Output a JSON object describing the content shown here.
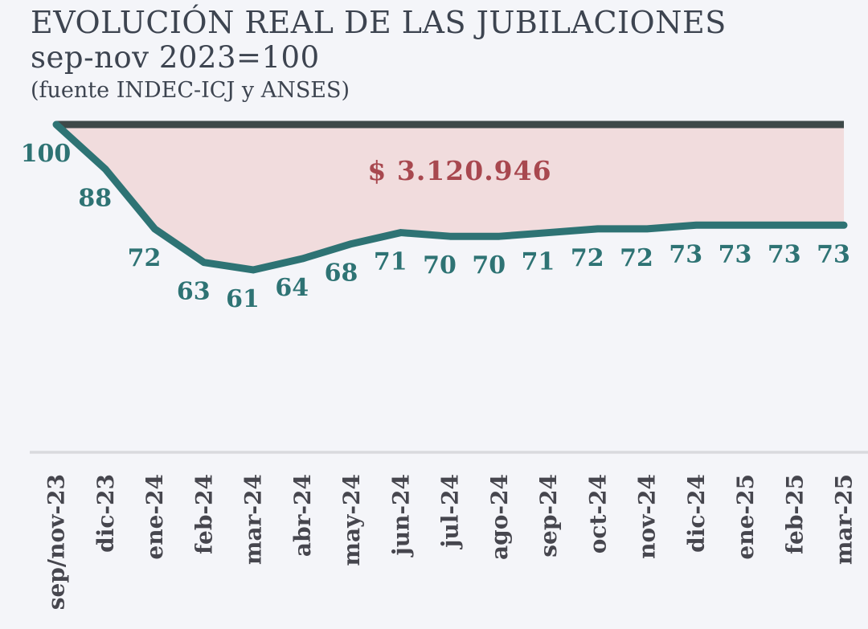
{
  "header": {
    "title": "EVOLUCIÓN REAL DE LAS JUBILACIONES",
    "subtitle": "sep-nov 2023=100",
    "source": "(fuente INDEC-ICJ y ANSES)"
  },
  "chart_data": {
    "type": "area",
    "title": "EVOLUCIÓN REAL DE LAS JUBILACIONES",
    "subtitle": "sep-nov 2023=100",
    "source": "(fuente INDEC-ICJ y ANSES)",
    "annotation": "$ 3.120.946",
    "baseline_value": 100,
    "categories": [
      "sep/nov-23",
      "dic-23",
      "ene-24",
      "feb-24",
      "mar-24",
      "abr-24",
      "may-24",
      "jun-24",
      "jul-24",
      "ago-24",
      "sep-24",
      "oct-24",
      "nov-24",
      "dic-24",
      "ene-25",
      "feb-25",
      "mar-25"
    ],
    "values": [
      100,
      88,
      72,
      63,
      61,
      64,
      68,
      71,
      70,
      70,
      71,
      72,
      72,
      73,
      73,
      73,
      73
    ],
    "ylim": [
      55,
      105
    ],
    "grid": false,
    "legend": false,
    "colors": {
      "background": "#f4f5f9",
      "series_line": "#2e7374",
      "baseline_line": "#3e4949",
      "area_fill": "#f1dcdd",
      "annotation_text": "#a8484f",
      "value_labels": "#2e7374",
      "tick_labels": "#46464e",
      "axis_line": "#d9dade",
      "title_text": "#3d4450"
    }
  }
}
